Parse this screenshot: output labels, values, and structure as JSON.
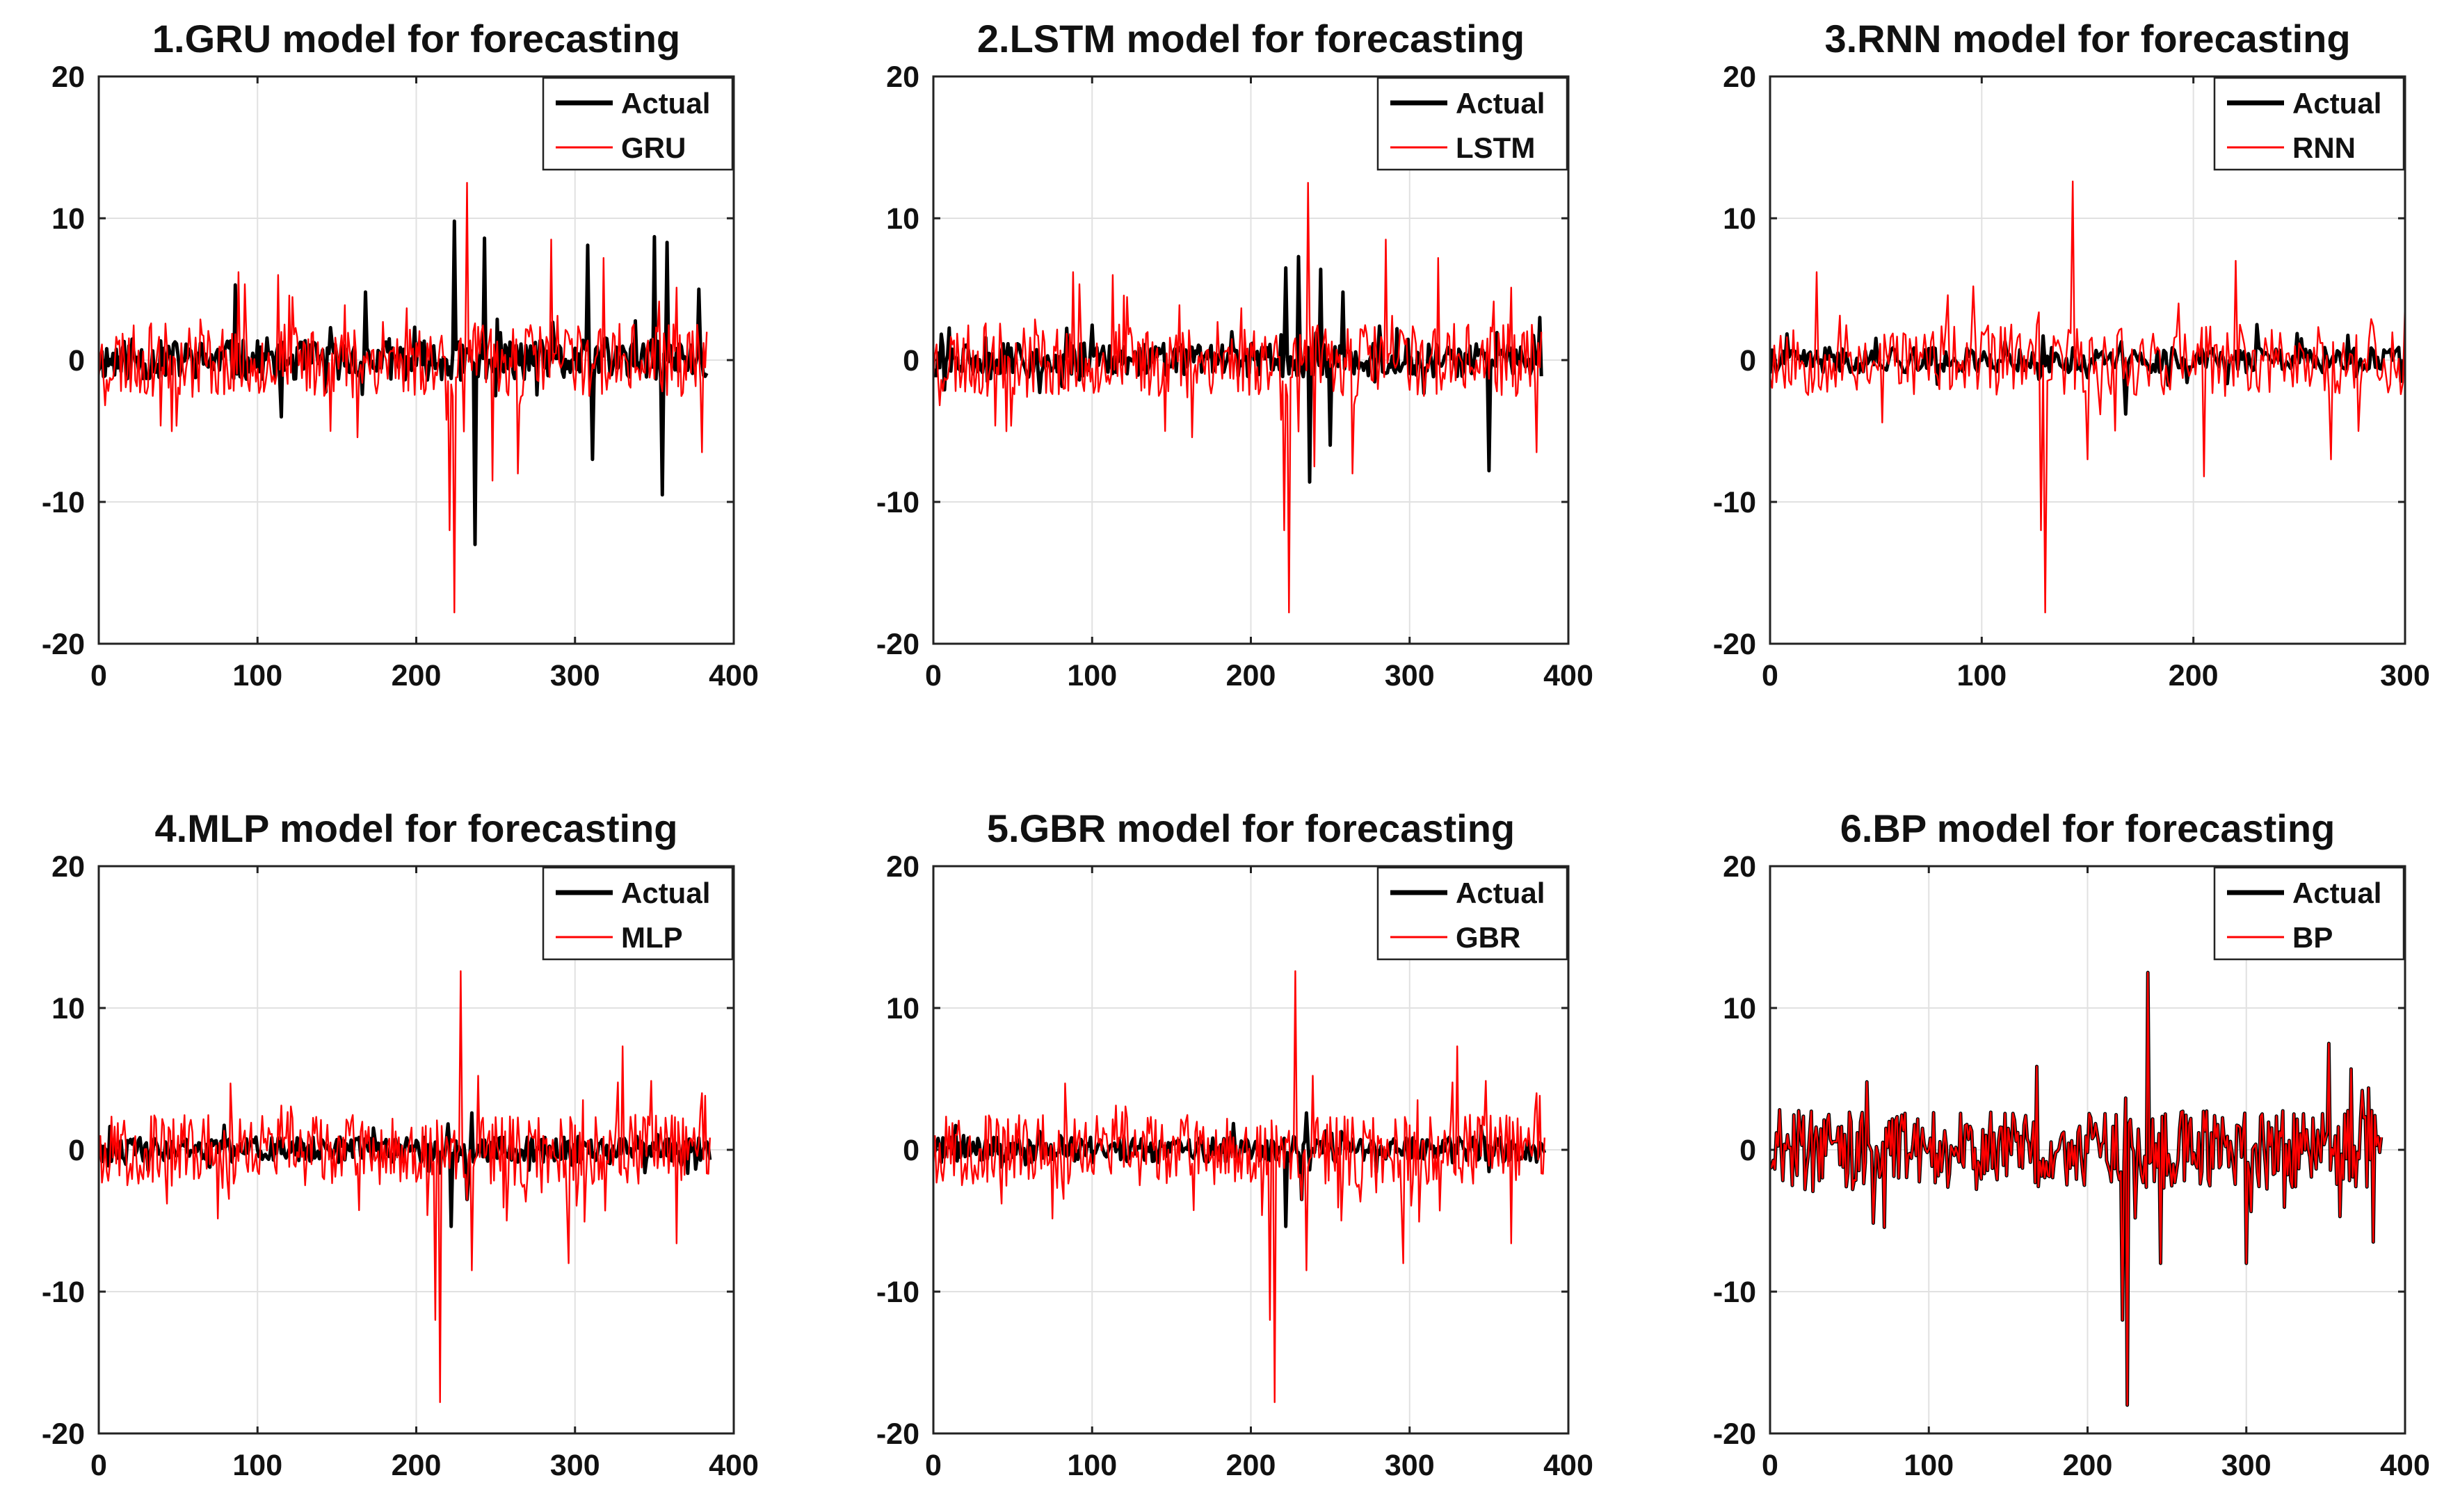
{
  "chart_data": [
    {
      "type": "line",
      "title": "1.GRU model for forecasting",
      "xlabel": "",
      "ylabel": "",
      "xlim": [
        0,
        400
      ],
      "ylim": [
        -20,
        20
      ],
      "x_ticks": [
        "0",
        "100",
        "200",
        "300",
        "400"
      ],
      "y_ticks": [
        "20",
        "10",
        "0",
        "-10",
        "-20"
      ],
      "grid": true,
      "legend_position": "top-right",
      "series": [
        {
          "name": "Actual",
          "color": "#000000",
          "n": 383,
          "amplitude": 1.4,
          "seed": 11,
          "spikes": [
            [
              86,
              5.3
            ],
            [
              115,
              -4.0
            ],
            [
              168,
              4.8
            ],
            [
              224,
              9.8
            ],
            [
              237,
              -13.0
            ],
            [
              243,
              8.6
            ],
            [
              308,
              8.1
            ],
            [
              311,
              -7.0
            ],
            [
              350,
              8.7
            ],
            [
              355,
              -9.5
            ],
            [
              358,
              8.3
            ],
            [
              378,
              5.0
            ]
          ]
        },
        {
          "name": "GRU",
          "color": "#ff0000",
          "n": 383,
          "amplitude": 2.6,
          "seed": 23,
          "spikes": [
            [
              88,
              6.2
            ],
            [
              113,
              6.0
            ],
            [
              221,
              -12.0
            ],
            [
              224,
              -17.8
            ],
            [
              232,
              12.5
            ],
            [
              248,
              -8.5
            ],
            [
              264,
              -8.0
            ],
            [
              285,
              8.5
            ],
            [
              318,
              7.2
            ],
            [
              380,
              -6.5
            ]
          ]
        }
      ]
    },
    {
      "type": "line",
      "title": "2.LSTM model for forecasting",
      "xlabel": "",
      "ylabel": "",
      "xlim": [
        0,
        400
      ],
      "ylim": [
        -20,
        20
      ],
      "x_ticks": [
        "0",
        "100",
        "200",
        "300",
        "400"
      ],
      "y_ticks": [
        "20",
        "10",
        "0",
        "-10",
        "-20"
      ],
      "grid": true,
      "legend_position": "top-right",
      "series": [
        {
          "name": "Actual",
          "color": "#000000",
          "n": 383,
          "amplitude": 1.2,
          "seed": 31,
          "spikes": [
            [
              222,
              6.5
            ],
            [
              230,
              7.3
            ],
            [
              237,
              -8.6
            ],
            [
              244,
              6.4
            ],
            [
              250,
              -6.0
            ],
            [
              258,
              4.8
            ],
            [
              350,
              -7.8
            ],
            [
              382,
              3.0
            ]
          ]
        },
        {
          "name": "LSTM",
          "color": "#ff0000",
          "n": 383,
          "amplitude": 2.6,
          "seed": 23,
          "spikes": [
            [
              88,
              6.2
            ],
            [
              113,
              6.0
            ],
            [
              221,
              -12.0
            ],
            [
              224,
              -17.8
            ],
            [
              236,
              12.5
            ],
            [
              240,
              -7.5
            ],
            [
              264,
              -8.0
            ],
            [
              285,
              8.5
            ],
            [
              318,
              7.2
            ],
            [
              380,
              -6.5
            ]
          ]
        }
      ]
    },
    {
      "type": "line",
      "title": "3.RNN model for forecasting",
      "xlabel": "",
      "ylabel": "",
      "xlim": [
        0,
        300
      ],
      "ylim": [
        -20,
        20
      ],
      "x_ticks": [
        "0",
        "100",
        "200",
        "300"
      ],
      "y_ticks": [
        "20",
        "10",
        "0",
        "-10",
        "-20"
      ],
      "grid": true,
      "legend_position": "top-right",
      "series": [
        {
          "name": "Actual",
          "color": "#000000",
          "n": 300,
          "amplitude": 0.9,
          "seed": 41,
          "spikes": [
            [
              168,
              -3.8
            ],
            [
              230,
              2.5
            ],
            [
              298,
              -1.5
            ]
          ]
        },
        {
          "name": "RNN",
          "color": "#ff0000",
          "n": 300,
          "amplitude": 2.5,
          "seed": 53,
          "spikes": [
            [
              22,
              6.2
            ],
            [
              128,
              -12.0
            ],
            [
              130,
              -17.8
            ],
            [
              143,
              12.6
            ],
            [
              150,
              -7.0
            ],
            [
              205,
              -8.2
            ],
            [
              265,
              -7.0
            ],
            [
              220,
              7.0
            ],
            [
              300,
              4.0
            ]
          ]
        }
      ]
    },
    {
      "type": "line",
      "title": "4.MLP model for forecasting",
      "xlabel": "",
      "ylabel": "",
      "xlim": [
        0,
        400
      ],
      "ylim": [
        -20,
        20
      ],
      "x_ticks": [
        "0",
        "100",
        "200",
        "300",
        "400"
      ],
      "y_ticks": [
        "20",
        "10",
        "0",
        "-10",
        "-20"
      ],
      "grid": true,
      "legend_position": "top-right",
      "series": [
        {
          "name": "Actual",
          "color": "#000000",
          "n": 385,
          "amplitude": 0.9,
          "seed": 61,
          "spikes": [
            [
              222,
              -5.4
            ],
            [
              232,
              -3.5
            ],
            [
              235,
              2.6
            ]
          ]
        },
        {
          "name": "MLP",
          "color": "#ff0000",
          "n": 385,
          "amplitude": 2.5,
          "seed": 67,
          "spikes": [
            [
              212,
              -12.0
            ],
            [
              215,
              -17.8
            ],
            [
              228,
              12.6
            ],
            [
              235,
              -8.5
            ],
            [
              296,
              -8.0
            ],
            [
              330,
              7.3
            ],
            [
              364,
              -6.6
            ],
            [
              380,
              4.0
            ]
          ]
        }
      ]
    },
    {
      "type": "line",
      "title": "5.GBR model for forecasting",
      "xlabel": "",
      "ylabel": "",
      "xlim": [
        0,
        400
      ],
      "ylim": [
        -20,
        20
      ],
      "x_ticks": [
        "0",
        "100",
        "200",
        "300",
        "400"
      ],
      "y_ticks": [
        "20",
        "10",
        "0",
        "-10",
        "-20"
      ],
      "grid": true,
      "legend_position": "top-right",
      "series": [
        {
          "name": "Actual",
          "color": "#000000",
          "n": 385,
          "amplitude": 0.9,
          "seed": 71,
          "spikes": [
            [
              222,
              -5.4
            ],
            [
              232,
              -3.5
            ],
            [
              235,
              2.6
            ]
          ]
        },
        {
          "name": "GBR",
          "color": "#ff0000",
          "n": 385,
          "amplitude": 2.5,
          "seed": 67,
          "spikes": [
            [
              212,
              -12.0
            ],
            [
              215,
              -17.8
            ],
            [
              228,
              12.6
            ],
            [
              235,
              -8.5
            ],
            [
              296,
              -8.0
            ],
            [
              330,
              7.3
            ],
            [
              364,
              -6.6
            ],
            [
              380,
              4.0
            ]
          ]
        }
      ]
    },
    {
      "type": "line",
      "title": "6.BP model for forecasting",
      "xlabel": "",
      "ylabel": "",
      "xlim": [
        0,
        400
      ],
      "ylim": [
        -20,
        20
      ],
      "x_ticks": [
        "0",
        "100",
        "200",
        "300",
        "400"
      ],
      "y_ticks": [
        "20",
        "10",
        "0",
        "-10",
        "-20"
      ],
      "grid": true,
      "legend_position": "top-right",
      "series": [
        {
          "name": "Actual",
          "color": "#000000",
          "n": 385,
          "amplitude": 2.8,
          "seed": 81,
          "spikes": [
            [
              222,
              -12.0
            ],
            [
              225,
              -18.0
            ],
            [
              238,
              12.5
            ],
            [
              246,
              -8.0
            ],
            [
              300,
              -8.0
            ],
            [
              352,
              7.5
            ],
            [
              380,
              -6.5
            ]
          ]
        },
        {
          "name": "BP",
          "color": "#ff0000",
          "n": 385,
          "amplitude": 2.8,
          "seed": 81,
          "spikes": [
            [
              222,
              -12.0
            ],
            [
              225,
              -18.0
            ],
            [
              238,
              12.5
            ],
            [
              246,
              -8.0
            ],
            [
              300,
              -8.0
            ],
            [
              352,
              7.5
            ],
            [
              380,
              -6.5
            ]
          ]
        }
      ]
    }
  ]
}
